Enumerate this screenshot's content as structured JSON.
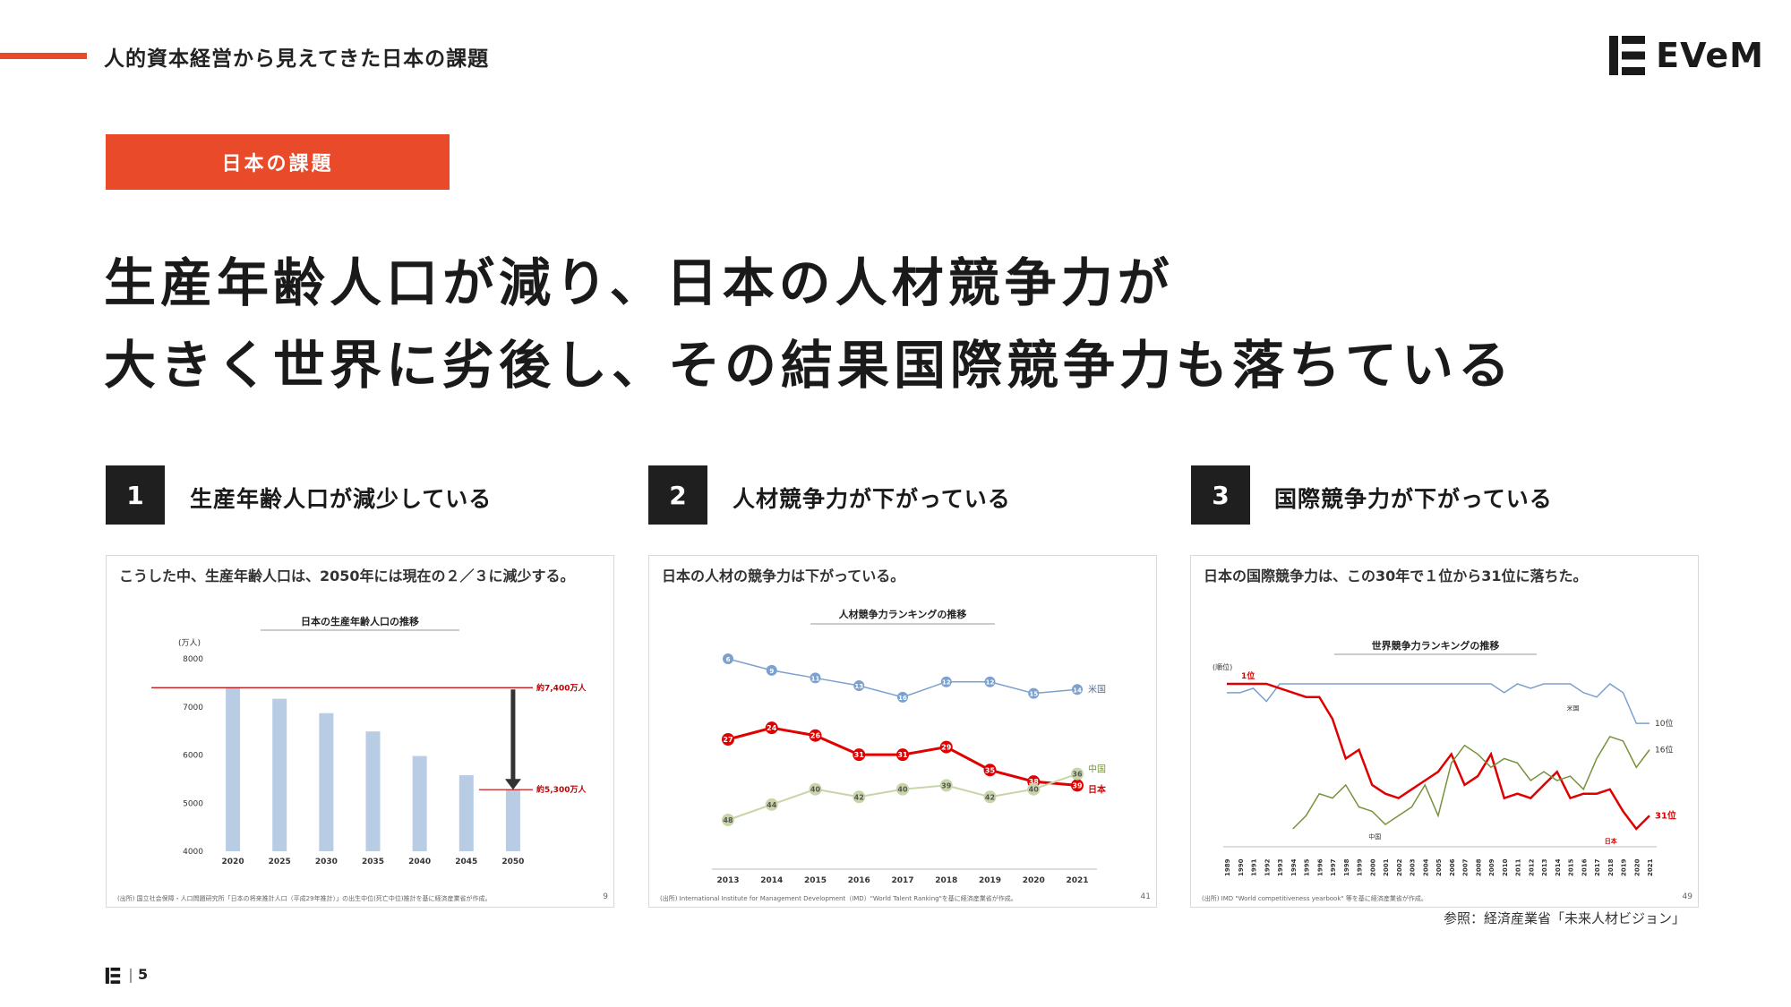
{
  "header": {
    "section_title": "人的資本経営から見えてきた日本の課題",
    "logo_text": "EVeM"
  },
  "tag": "日本の課題",
  "headline": {
    "line1": "生産年齢人口が減り、日本の人材競争力が",
    "line2": "大きく世界に劣後し、その結果国際競争力も落ちている"
  },
  "points": [
    {
      "num": "1",
      "label": "生産年齢人口が減少している"
    },
    {
      "num": "2",
      "label": "人材競争力が下がっている"
    },
    {
      "num": "3",
      "label": "国際競争力が下がっている"
    }
  ],
  "panels": [
    {
      "heading": "こうした中、生産年齢人口は、2050年には現在の２／３に減少する。",
      "source": "(出所) 国立社会保障・人口問題研究所「日本の将来推計人口（平成29年推計）」の出生中位(死亡中位)推計を基に経済産業省が作成。",
      "page": "9"
    },
    {
      "heading": "日本の人材の競争力は下がっている。",
      "source": "(出所) International Institute for Management Development（IMD）\"World Talent Ranking\"を基に経済産業省が作成。",
      "page": "41"
    },
    {
      "heading": "日本の国際競争力は、この30年で１位から31位に落ちた。",
      "source": "(出所) IMD \"World competitiveness yearbook\" 等を基に経済産業省が作成。",
      "page": "49"
    }
  ],
  "reference": "参照：経済産業省「未来人材ビジョン」",
  "footer": {
    "page": "5"
  },
  "colors": {
    "accent": "#e94b2a",
    "bar": "#b8cce4",
    "japan": "#e00000",
    "usa": "#7ba1cf",
    "china": "#c8d5a8",
    "china_dark": "#76923c"
  },
  "chart_data": [
    {
      "type": "bar",
      "title": "日本の生産年齢人口の推移",
      "ylabel": "(万人)",
      "categories": [
        "2020",
        "2025",
        "2030",
        "2035",
        "2040",
        "2045",
        "2050"
      ],
      "values": [
        7400,
        7170,
        6870,
        6490,
        5980,
        5580,
        5280
      ],
      "ylim": [
        4000,
        8000
      ],
      "yticks": [
        "4000",
        "5000",
        "6000",
        "7000",
        "8000"
      ],
      "annotations": {
        "high": "約7,400万人",
        "low": "約5,300万人"
      }
    },
    {
      "type": "line",
      "title": "人材競争力ランキングの推移",
      "x": [
        "2013",
        "2014",
        "2015",
        "2016",
        "2017",
        "2018",
        "2019",
        "2020",
        "2021"
      ],
      "inverted": true,
      "series": [
        {
          "name": "米国",
          "values": [
            6,
            9,
            11,
            13,
            16,
            12,
            12,
            15,
            14
          ]
        },
        {
          "name": "日本",
          "values": [
            27,
            24,
            26,
            31,
            31,
            29,
            35,
            38,
            39
          ]
        },
        {
          "name": "中国",
          "values": [
            48,
            44,
            40,
            42,
            40,
            39,
            42,
            40,
            36
          ]
        }
      ]
    },
    {
      "type": "line",
      "title": "世界競争力ランキングの推移",
      "ylabel": "(順位)",
      "inverted": true,
      "x": [
        "1989",
        "1990",
        "1991",
        "1992",
        "1993",
        "1994",
        "1995",
        "1996",
        "1997",
        "1998",
        "1999",
        "2000",
        "2001",
        "2002",
        "2003",
        "2004",
        "2005",
        "2006",
        "2007",
        "2008",
        "2009",
        "2010",
        "2011",
        "2012",
        "2013",
        "2014",
        "2015",
        "2016",
        "2017",
        "2018",
        "2019",
        "2020",
        "2021"
      ],
      "series": [
        {
          "name": "米国",
          "values": [
            3,
            3,
            2,
            5,
            1,
            1,
            1,
            1,
            1,
            1,
            1,
            1,
            1,
            1,
            1,
            1,
            1,
            1,
            1,
            1,
            1,
            3,
            1,
            2,
            1,
            1,
            1,
            3,
            4,
            1,
            3,
            10,
            10
          ]
        },
        {
          "name": "日本",
          "values": [
            1,
            1,
            1,
            1,
            2,
            3,
            4,
            4,
            9,
            18,
            16,
            24,
            26,
            27,
            25,
            23,
            21,
            17,
            24,
            22,
            17,
            27,
            26,
            27,
            24,
            21,
            27,
            26,
            26,
            25,
            30,
            34,
            31
          ]
        },
        {
          "name": "中国",
          "values": [
            null,
            null,
            null,
            null,
            null,
            34,
            31,
            26,
            27,
            24,
            29,
            30,
            33,
            31,
            29,
            24,
            31,
            19,
            15,
            17,
            20,
            18,
            19,
            23,
            21,
            23,
            22,
            25,
            18,
            13,
            14,
            20,
            16
          ]
        }
      ],
      "labels": {
        "first": "1位",
        "usa": "米国",
        "usa_end": "10位",
        "china": "中国",
        "china_end": "16位",
        "japan": "日本",
        "japan_end": "31位"
      }
    }
  ]
}
